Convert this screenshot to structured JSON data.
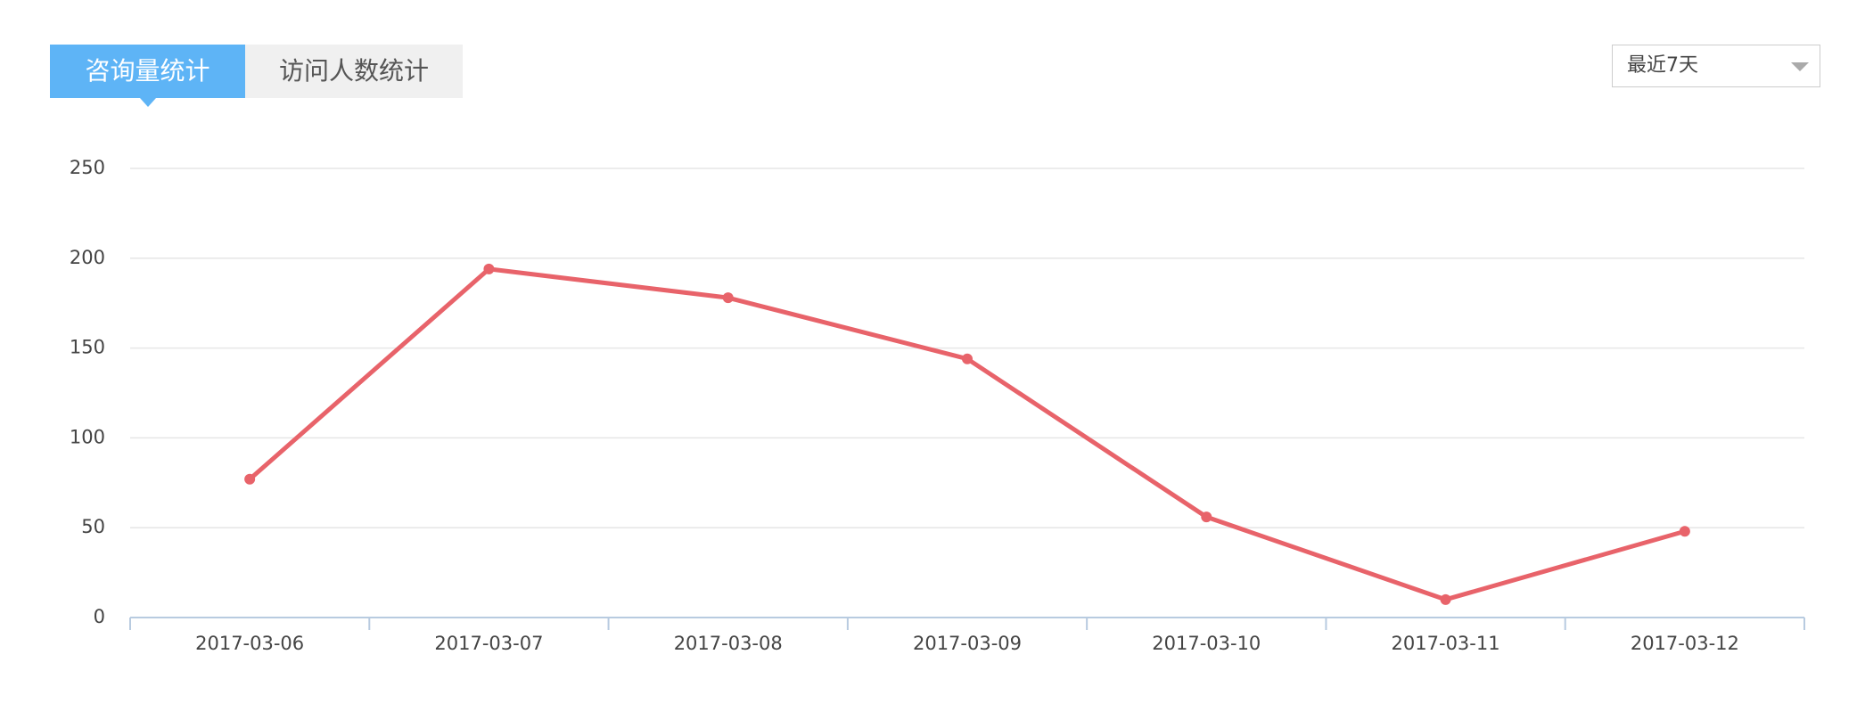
{
  "tabs": [
    "咨询量统计",
    "访问人数统计"
  ],
  "range_select": "最近7天",
  "chart_data": {
    "type": "line",
    "categories": [
      "2017-03-06",
      "2017-03-07",
      "2017-03-08",
      "2017-03-09",
      "2017-03-10",
      "2017-03-11",
      "2017-03-12"
    ],
    "values": [
      77,
      194,
      178,
      144,
      56,
      10,
      48
    ],
    "color": "#e8636a",
    "ylim": [
      0,
      250
    ],
    "yticks": [
      0,
      50,
      100,
      150,
      200,
      250
    ],
    "grid": true
  }
}
